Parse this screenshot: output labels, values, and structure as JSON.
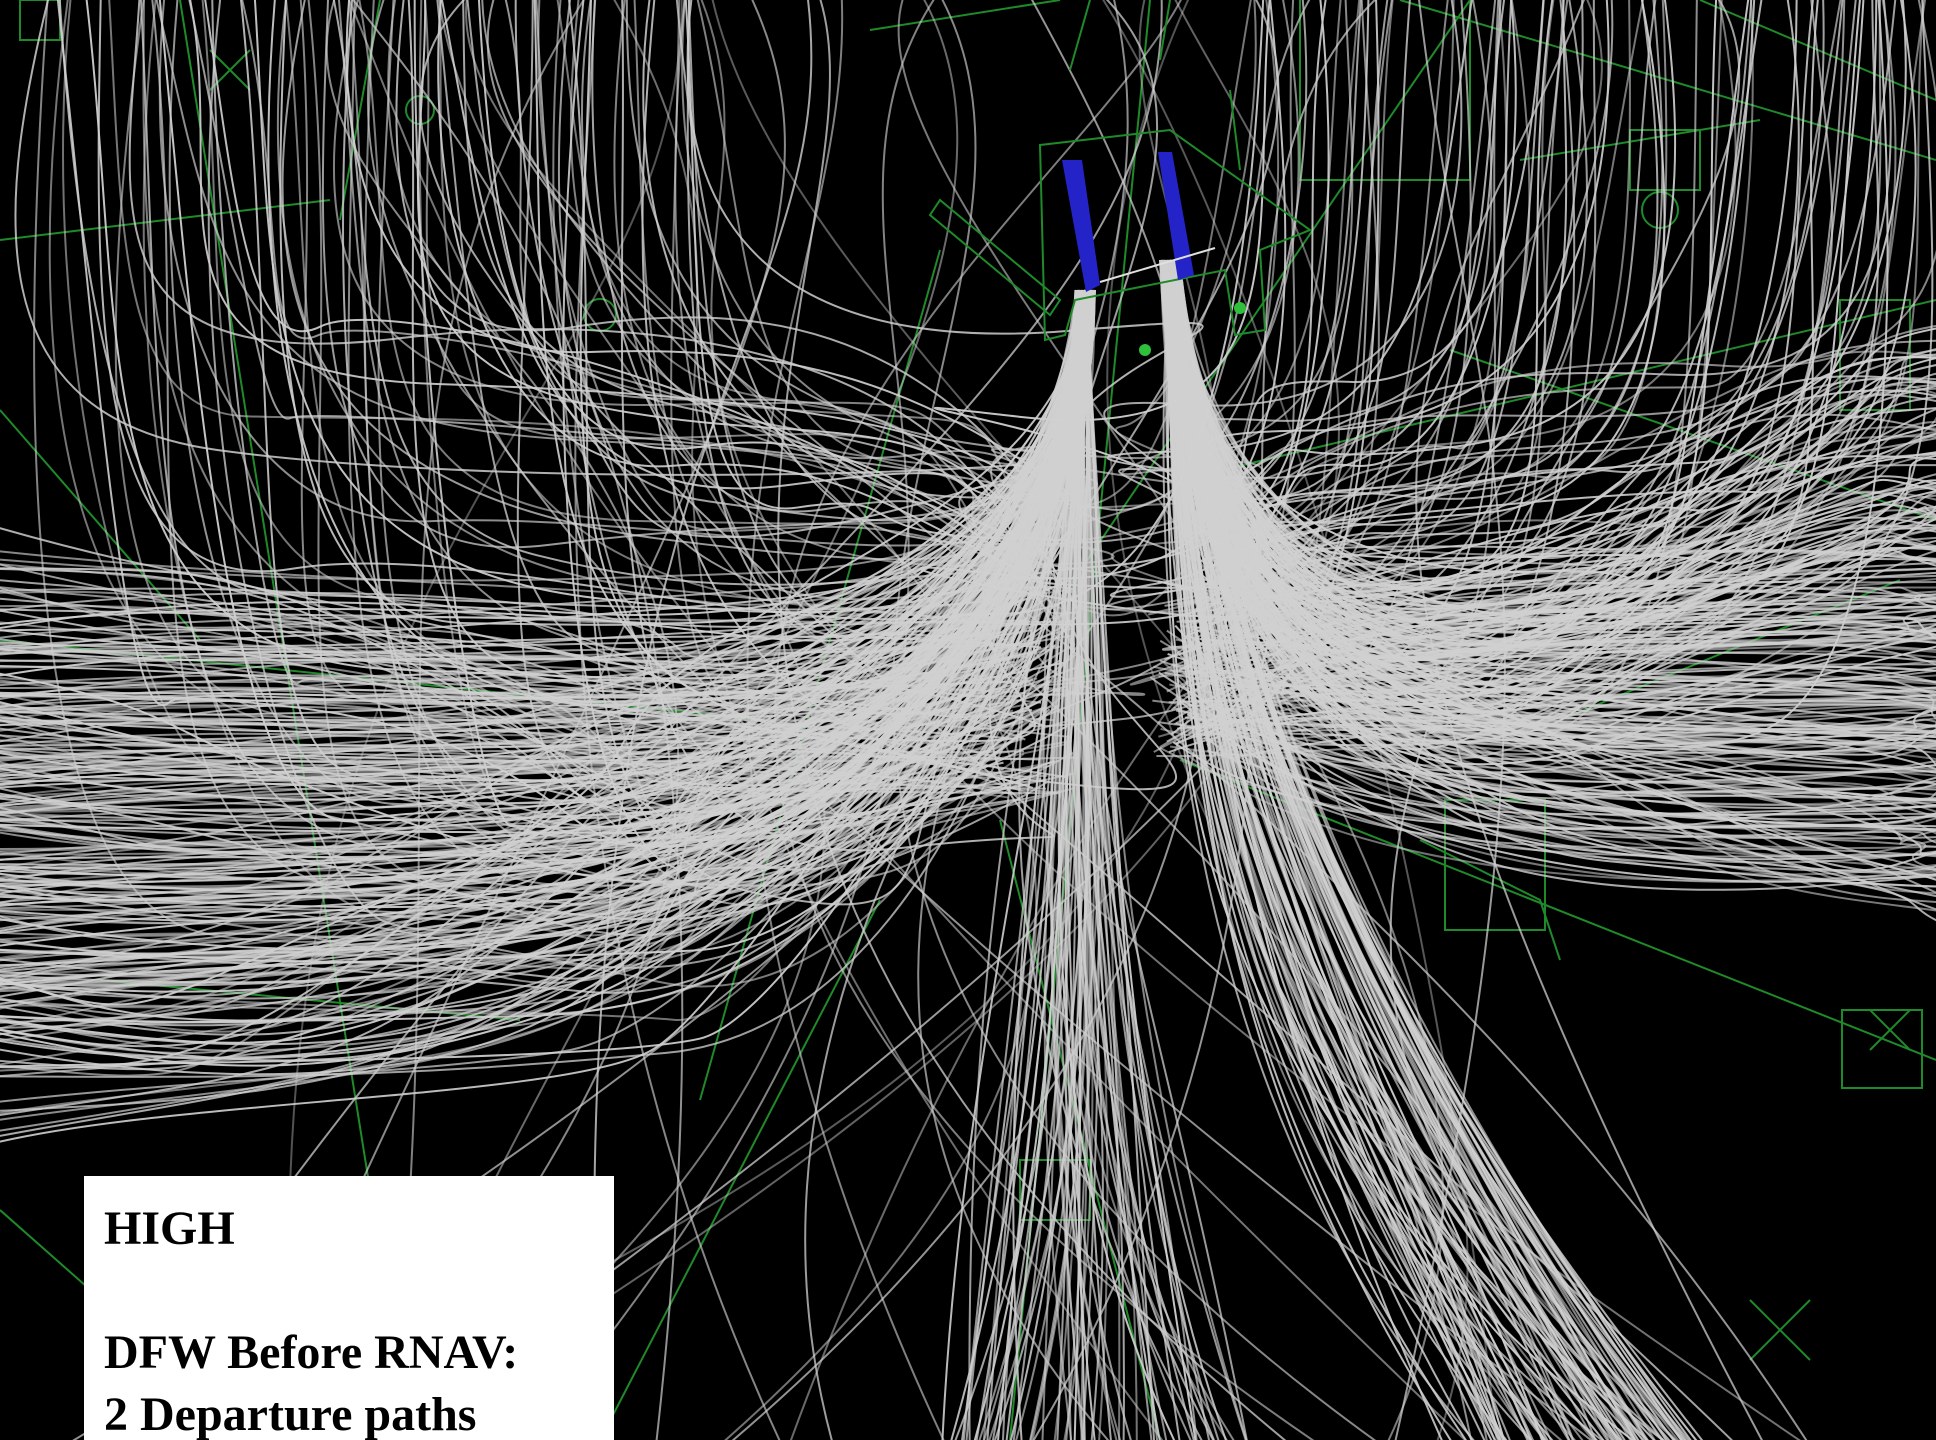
{
  "caption": {
    "level": "HIGH",
    "title": "DFW Before RNAV:",
    "subtitle": "2 Departure paths"
  },
  "colors": {
    "background": "#000000",
    "tracks": "#d0d0d0",
    "map_lines": "#1f8a2a",
    "runways": "#2323c8",
    "caption_bg": "#ffffff",
    "caption_text": "#000000"
  }
}
